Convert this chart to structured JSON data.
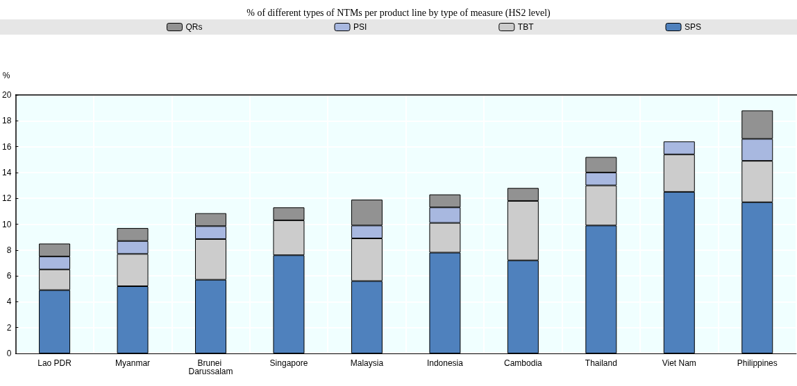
{
  "chart_data": {
    "type": "bar",
    "title": "% of different types of NTMs per product line by type of measure (HS2 level)",
    "ylabel": "%",
    "categories": [
      "Lao PDR",
      "Myanmar",
      "Brunei Darussalam",
      "Singapore",
      "Malaysia",
      "Indonesia",
      "Cambodia",
      "Thailand",
      "Viet Nam",
      "Philippines"
    ],
    "stacked": true,
    "series": [
      {
        "name": "SPS",
        "color": "#4f81bd",
        "values": [
          4.9,
          5.2,
          5.7,
          7.6,
          5.6,
          7.8,
          7.2,
          9.9,
          12.5,
          11.7
        ]
      },
      {
        "name": "TBT",
        "color": "#cccccc",
        "values": [
          1.6,
          2.5,
          3.15,
          2.7,
          3.3,
          2.3,
          4.6,
          3.1,
          2.9,
          3.2
        ]
      },
      {
        "name": "PSI",
        "color": "#a8b8e0",
        "values": [
          1.0,
          1.0,
          1.0,
          null,
          1.0,
          1.2,
          null,
          1.0,
          1.0,
          1.7
        ]
      },
      {
        "name": "QRs",
        "color": "#929292",
        "values": [
          1.0,
          1.0,
          1.0,
          1.0,
          2.0,
          1.0,
          1.0,
          1.2,
          null,
          2.2
        ]
      }
    ],
    "ylim": [
      0,
      20
    ],
    "yticks": [
      0,
      2,
      4,
      6,
      8,
      10,
      12,
      14,
      16,
      18,
      20
    ],
    "grid": true,
    "legend": "top"
  }
}
